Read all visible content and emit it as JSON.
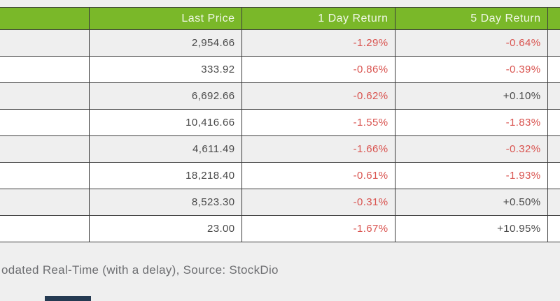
{
  "colors": {
    "page_bg": "#efefef",
    "header_bg": "#7ab829",
    "header_text": "#f0f7e6",
    "row_alt_bg": "#efefef",
    "row_bg": "#ffffff",
    "border": "#3b3b3b",
    "negative_text": "#d9534f",
    "positive_text": "#4a4a4a",
    "footer_text": "#6d6e71",
    "logo_bar_bg": "#253a52"
  },
  "table": {
    "columns": {
      "name": "",
      "last_price": "Last Price",
      "day1": "1 Day Return",
      "day5": "5 Day Return",
      "extra": ""
    },
    "rows": [
      {
        "name": "",
        "last_price": "2,954.66",
        "day1": "-1.29%",
        "day5": "-0.64%"
      },
      {
        "name": "",
        "last_price": "333.92",
        "day1": "-0.86%",
        "day5": "-0.39%"
      },
      {
        "name": "",
        "last_price": "6,692.66",
        "day1": "-0.62%",
        "day5": "+0.10%"
      },
      {
        "name": "",
        "last_price": "10,416.66",
        "day1": "-1.55%",
        "day5": "-1.83%"
      },
      {
        "name": "",
        "last_price": "4,611.49",
        "day1": "-1.66%",
        "day5": "-0.32%"
      },
      {
        "name": "",
        "last_price": "18,218.40",
        "day1": "-0.61%",
        "day5": "-1.93%"
      },
      {
        "name": "",
        "last_price": "8,523.30",
        "day1": "-0.31%",
        "day5": "+0.50%"
      },
      {
        "name": "",
        "last_price": "23.00",
        "day1": "-1.67%",
        "day5": "+10.95%"
      }
    ]
  },
  "footer": {
    "attribution": "odated Real-Time (with a delay), Source: StockDio"
  }
}
